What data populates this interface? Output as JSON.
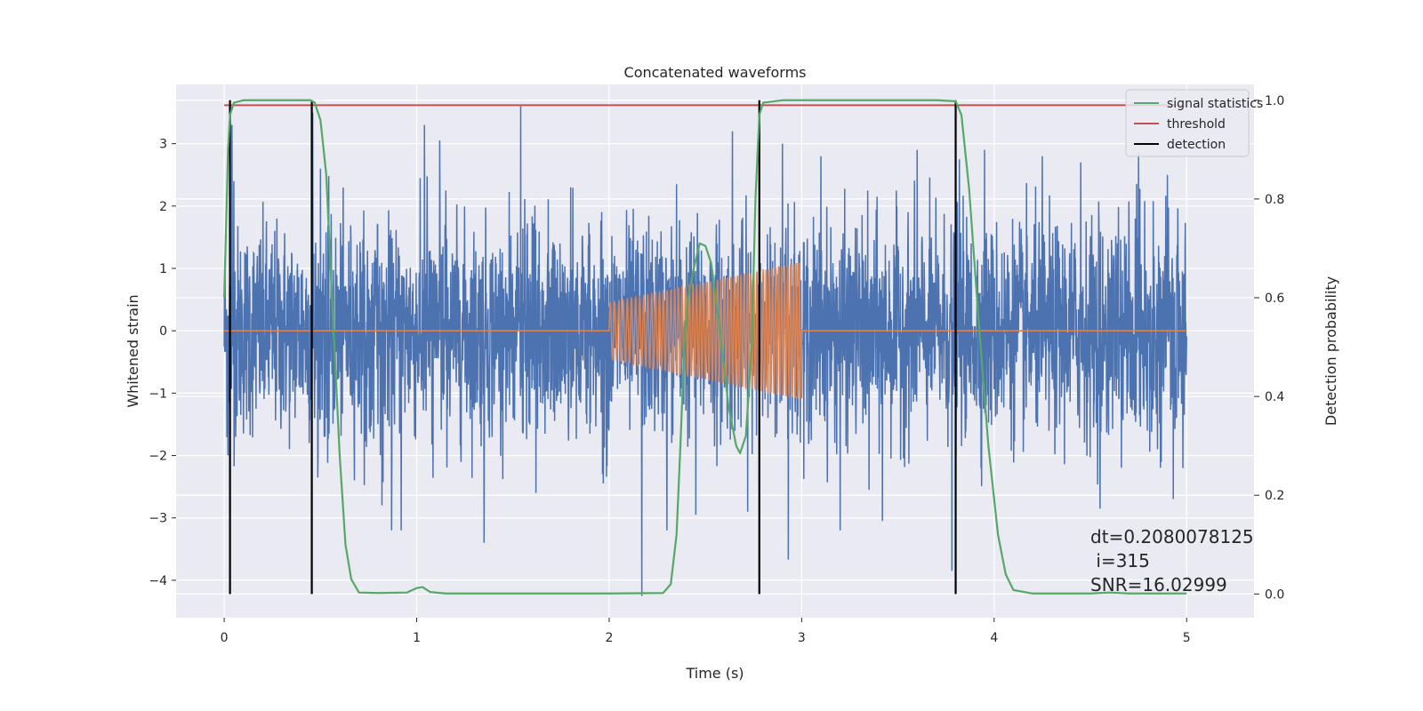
{
  "chart_data": {
    "type": "line",
    "title": "Concatenated waveforms",
    "xlabel": "Time (s)",
    "ylabel_left": "Whitened strain",
    "ylabel_right": "Detection probability",
    "xlim": [
      -0.25,
      5.35
    ],
    "ylim_left": [
      -4.6,
      3.95
    ],
    "ylim_right": [
      -0.048,
      1.032
    ],
    "x_ticks": [
      0,
      1,
      2,
      3,
      4,
      5
    ],
    "y_ticks_left": [
      -4,
      -3,
      -2,
      -1,
      0,
      1,
      2,
      3
    ],
    "y_ticks_right": [
      0.0,
      0.2,
      0.4,
      0.6,
      0.8,
      1.0
    ],
    "y_tick_labels_left": [
      "−4",
      "−3",
      "−2",
      "−1",
      "0",
      "1",
      "2",
      "3"
    ],
    "y_tick_labels_right": [
      "0.0",
      "0.2",
      "0.4",
      "0.6",
      "0.8",
      "1.0"
    ],
    "x_tick_labels": [
      "0",
      "1",
      "2",
      "3",
      "4",
      "5"
    ],
    "grid": true,
    "legend_position": "top-right",
    "series": [
      {
        "name": "",
        "axis": "left",
        "color": "#4c72b0",
        "kind": "noise",
        "x_range": [
          0,
          5
        ],
        "typical_amplitude": 1.15,
        "peak_values": [
          [
            0.02,
            -2.0
          ],
          [
            0.04,
            3.3
          ],
          [
            0.05,
            2.4
          ],
          [
            0.06,
            -1.7
          ],
          [
            0.46,
            3.5
          ],
          [
            0.47,
            -1.4
          ],
          [
            0.5,
            2.6
          ],
          [
            0.82,
            -2.8
          ],
          [
            0.87,
            -3.2
          ],
          [
            0.92,
            -3.2
          ],
          [
            1.04,
            3.3
          ],
          [
            1.12,
            3.05
          ],
          [
            1.35,
            -3.4
          ],
          [
            1.54,
            3.6
          ],
          [
            1.62,
            -2.6
          ],
          [
            1.8,
            2.3
          ],
          [
            2.17,
            -4.25
          ],
          [
            2.3,
            -3.2
          ],
          [
            2.35,
            2.35
          ],
          [
            2.45,
            -2.95
          ],
          [
            2.64,
            3.2
          ],
          [
            2.72,
            -2.9
          ],
          [
            2.9,
            3.0
          ],
          [
            2.93,
            -3.67
          ],
          [
            3.1,
            2.8
          ],
          [
            3.2,
            -3.2
          ],
          [
            3.35,
            -2.55
          ],
          [
            3.42,
            -3.05
          ],
          [
            3.6,
            2.9
          ],
          [
            3.78,
            -3.85
          ],
          [
            3.82,
            2.75
          ],
          [
            3.95,
            2.9
          ],
          [
            4.25,
            2.8
          ],
          [
            4.45,
            2.7
          ],
          [
            4.55,
            -2.85
          ],
          [
            4.75,
            2.85
          ],
          [
            4.9,
            2.5
          ],
          [
            4.93,
            -2.7
          ],
          [
            4.98,
            -2.2
          ]
        ]
      },
      {
        "name": "",
        "axis": "left",
        "color": "#dd8452",
        "kind": "chirp",
        "x_range": [
          0,
          5
        ],
        "active_range": [
          2.0,
          3.0
        ],
        "amplitude_start": 0.45,
        "amplitude_end": 1.1,
        "cycles": 55
      },
      {
        "name": "signal statistics",
        "axis": "right",
        "color": "#55a868",
        "points": [
          [
            0.0,
            0.6
          ],
          [
            0.01,
            0.75
          ],
          [
            0.02,
            0.9
          ],
          [
            0.03,
            0.97
          ],
          [
            0.05,
            0.995
          ],
          [
            0.1,
            1.0
          ],
          [
            0.3,
            1.0
          ],
          [
            0.45,
            1.0
          ],
          [
            0.47,
            0.995
          ],
          [
            0.5,
            0.96
          ],
          [
            0.53,
            0.85
          ],
          [
            0.56,
            0.6
          ],
          [
            0.6,
            0.28
          ],
          [
            0.63,
            0.1
          ],
          [
            0.66,
            0.03
          ],
          [
            0.7,
            0.003
          ],
          [
            0.8,
            0.002
          ],
          [
            0.95,
            0.003
          ],
          [
            1.0,
            0.012
          ],
          [
            1.03,
            0.014
          ],
          [
            1.07,
            0.004
          ],
          [
            1.15,
            0.001
          ],
          [
            1.5,
            0.001
          ],
          [
            2.0,
            0.001
          ],
          [
            2.28,
            0.002
          ],
          [
            2.32,
            0.02
          ],
          [
            2.35,
            0.12
          ],
          [
            2.37,
            0.3
          ],
          [
            2.39,
            0.5
          ],
          [
            2.41,
            0.6
          ],
          [
            2.44,
            0.66
          ],
          [
            2.47,
            0.71
          ],
          [
            2.5,
            0.705
          ],
          [
            2.53,
            0.67
          ],
          [
            2.57,
            0.55
          ],
          [
            2.62,
            0.38
          ],
          [
            2.66,
            0.3
          ],
          [
            2.68,
            0.285
          ],
          [
            2.71,
            0.32
          ],
          [
            2.74,
            0.5
          ],
          [
            2.76,
            0.8
          ],
          [
            2.78,
            0.97
          ],
          [
            2.8,
            0.995
          ],
          [
            2.9,
            1.0
          ],
          [
            3.7,
            1.0
          ],
          [
            3.8,
            0.998
          ],
          [
            3.83,
            0.97
          ],
          [
            3.87,
            0.82
          ],
          [
            3.92,
            0.55
          ],
          [
            3.97,
            0.3
          ],
          [
            4.02,
            0.12
          ],
          [
            4.06,
            0.04
          ],
          [
            4.1,
            0.008
          ],
          [
            4.2,
            0.001
          ],
          [
            4.5,
            0.001
          ],
          [
            4.6,
            0.003
          ],
          [
            4.7,
            0.001
          ],
          [
            5.0,
            0.001
          ]
        ]
      },
      {
        "name": "threshold",
        "axis": "right",
        "color": "#c44e52",
        "y": 0.99,
        "x_range": [
          0,
          5
        ]
      },
      {
        "name": "detection",
        "axis": "right",
        "color": "#000000",
        "x_positions": [
          0.03,
          0.455,
          2.78,
          3.8
        ],
        "y_range": [
          0.0,
          1.0
        ]
      }
    ],
    "annotations": [
      {
        "text": "dt=0.2080078125",
        "x": 4.5,
        "y": -3.4
      },
      {
        "text": " i=315",
        "x": 4.5,
        "y": -3.79
      },
      {
        "text": "SNR=16.02999",
        "x": 4.5,
        "y": -4.17
      }
    ]
  }
}
